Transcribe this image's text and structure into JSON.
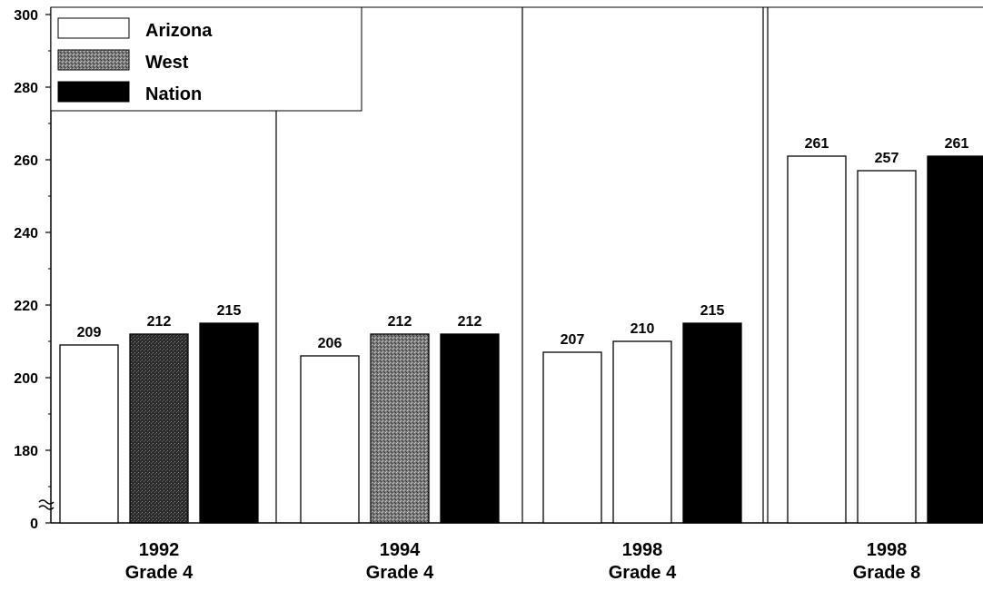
{
  "chart_data": {
    "type": "bar",
    "y_axis": {
      "range": [
        0,
        300
      ],
      "axis_break": "between 0 and 160",
      "tick_labels": [
        "0",
        "180",
        "200",
        "220",
        "240",
        "260",
        "280",
        "300"
      ],
      "tick_values": [
        0,
        180,
        200,
        220,
        240,
        260,
        280,
        300
      ]
    },
    "legend": {
      "placement": "top-left",
      "entries": [
        {
          "label": "Arizona",
          "fill": "white"
        },
        {
          "label": "West",
          "fill": "stippled-gray"
        },
        {
          "label": "Nation",
          "fill": "black"
        }
      ]
    },
    "groups": [
      {
        "year": "1992",
        "grade": "Grade 4",
        "bars": [
          {
            "series": "Arizona",
            "value": 209,
            "label": "209",
            "fill": "white"
          },
          {
            "series": "West",
            "value": 212,
            "label": "212",
            "fill": "stippled-dark"
          },
          {
            "series": "Nation",
            "value": 215,
            "label": "215",
            "fill": "black"
          }
        ]
      },
      {
        "year": "1994",
        "grade": "Grade 4",
        "bars": [
          {
            "series": "Arizona",
            "value": 206,
            "label": "206",
            "fill": "white"
          },
          {
            "series": "West",
            "value": 212,
            "label": "212",
            "fill": "stippled-gray"
          },
          {
            "series": "Nation",
            "value": 212,
            "label": "212",
            "fill": "black"
          }
        ]
      },
      {
        "year": "1998",
        "grade": "Grade 4",
        "bars": [
          {
            "series": "Arizona",
            "value": 207,
            "label": "207",
            "fill": "white"
          },
          {
            "series": "West",
            "value": 210,
            "label": "210",
            "fill": "white"
          },
          {
            "series": "Nation",
            "value": 215,
            "label": "215",
            "fill": "black"
          }
        ]
      },
      {
        "year": "1998",
        "grade": "Grade 8",
        "bars": [
          {
            "series": "Arizona",
            "value": 261,
            "label": "261",
            "fill": "white"
          },
          {
            "series": "West",
            "value": 257,
            "label": "257",
            "fill": "white"
          },
          {
            "series": "Nation",
            "value": 261,
            "label": "261",
            "fill": "black"
          }
        ]
      }
    ],
    "colors": {
      "bar_outline": "#000000",
      "black_fill": "#000000",
      "white_fill": "#ffffff"
    }
  }
}
